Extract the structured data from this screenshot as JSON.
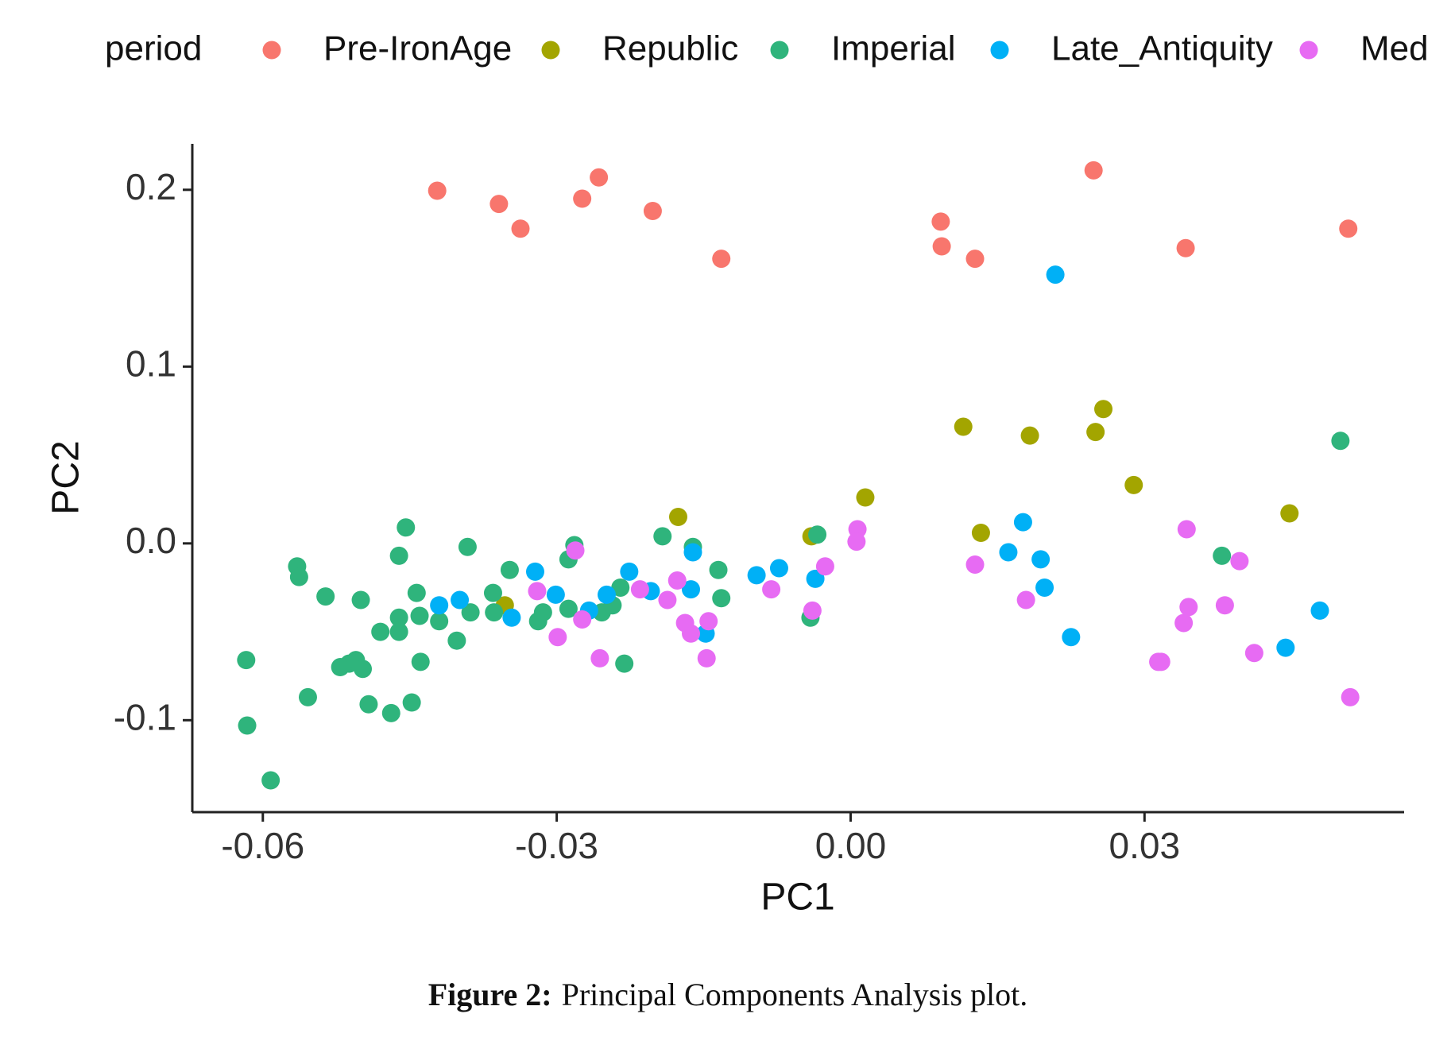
{
  "chart_data": {
    "type": "scatter",
    "legend_title": "period",
    "legend_position": "top",
    "xlabel": "PC1",
    "ylabel": "PC2",
    "xlim": [
      -0.0672,
      0.0565
    ],
    "ylim": [
      -0.152,
      0.226
    ],
    "xticks": [
      -0.06,
      -0.03,
      {
        "value": 0,
        "label": "0.00"
      },
      0.03
    ],
    "yticks": [
      -0.1,
      {
        "value": 0,
        "label": "0.0"
      },
      0.1,
      0.2
    ],
    "grid": false,
    "series": [
      {
        "name": "Pre-IronAge",
        "color": "#F8766D",
        "x": [
          -0.0422,
          -0.0359,
          -0.0337,
          -0.0274,
          -0.0257,
          -0.0202,
          -0.0132,
          0.0092,
          0.0093,
          0.0127,
          0.0248,
          0.0342,
          0.0508
        ],
        "values": [
          0.1995,
          0.192,
          0.178,
          0.195,
          0.207,
          0.188,
          0.161,
          0.182,
          0.168,
          0.161,
          0.211,
          0.167,
          0.178
        ]
      },
      {
        "name": "Republic",
        "color": "#A3A500",
        "x": [
          -0.0176,
          -0.0353,
          -0.004,
          0.0015,
          0.0115,
          0.0133,
          0.0183,
          0.025,
          0.0258,
          0.0289,
          0.0448
        ],
        "values": [
          0.015,
          -0.035,
          0.004,
          0.026,
          0.066,
          0.006,
          0.061,
          0.063,
          0.076,
          0.033,
          0.017
        ]
      },
      {
        "name": "Imperial",
        "color": "#2FB47C",
        "x": [
          -0.0617,
          -0.0616,
          -0.0592,
          -0.0565,
          -0.0563,
          -0.0554,
          -0.0536,
          -0.0521,
          -0.0512,
          -0.0505,
          -0.0498,
          -0.05,
          -0.0492,
          -0.048,
          -0.0469,
          -0.0461,
          -0.0461,
          -0.0461,
          -0.0454,
          -0.0448,
          -0.0443,
          -0.044,
          -0.0439,
          -0.042,
          -0.0402,
          -0.0391,
          -0.0388,
          -0.0365,
          -0.0364,
          -0.0348,
          -0.0319,
          -0.0314,
          -0.0288,
          -0.0288,
          -0.0282,
          -0.0254,
          -0.0243,
          -0.0235,
          -0.0231,
          -0.0192,
          -0.0161,
          -0.0135,
          -0.0132,
          -0.0041,
          -0.0034,
          0.0379,
          0.05
        ],
        "values": [
          -0.066,
          -0.103,
          -0.134,
          -0.013,
          -0.019,
          -0.087,
          -0.03,
          -0.07,
          -0.068,
          -0.066,
          -0.071,
          -0.032,
          -0.091,
          -0.05,
          -0.096,
          -0.007,
          -0.042,
          -0.05,
          0.009,
          -0.09,
          -0.028,
          -0.041,
          -0.067,
          -0.044,
          -0.055,
          -0.002,
          -0.039,
          -0.028,
          -0.039,
          -0.015,
          -0.044,
          -0.039,
          -0.009,
          -0.037,
          -0.001,
          -0.039,
          -0.035,
          -0.025,
          -0.068,
          0.004,
          -0.002,
          -0.015,
          -0.031,
          -0.042,
          0.005,
          -0.007,
          0.058
        ]
      },
      {
        "name": "Late_Antiquity",
        "color": "#00B0F6",
        "x": [
          -0.042,
          -0.0399,
          -0.0346,
          -0.0322,
          -0.0301,
          -0.0267,
          -0.0249,
          -0.0226,
          -0.0204,
          -0.0163,
          -0.0161,
          -0.0148,
          -0.0096,
          -0.0073,
          -0.0036,
          0.0161,
          0.0176,
          0.0194,
          0.0198,
          0.0209,
          0.0225,
          0.0444,
          0.0479
        ],
        "values": [
          -0.035,
          -0.032,
          -0.042,
          -0.016,
          -0.029,
          -0.038,
          -0.029,
          -0.016,
          -0.027,
          -0.026,
          -0.005,
          -0.051,
          -0.018,
          -0.014,
          -0.02,
          -0.005,
          0.012,
          -0.009,
          -0.025,
          0.152,
          -0.053,
          -0.059,
          -0.038
        ]
      },
      {
        "name": "Med",
        "color": "#E76BF3",
        "x": [
          -0.032,
          -0.0299,
          -0.0281,
          -0.0274,
          -0.0256,
          -0.0215,
          -0.0187,
          -0.0177,
          -0.0169,
          -0.0163,
          -0.0145,
          -0.0147,
          -0.0081,
          -0.0039,
          -0.0026,
          0.0007,
          0.0006,
          0.0127,
          0.0179,
          0.0314,
          0.0317,
          0.034,
          0.0343,
          0.0345,
          0.0382,
          0.0397,
          0.0412,
          0.051
        ],
        "values": [
          -0.027,
          -0.053,
          -0.004,
          -0.043,
          -0.065,
          -0.026,
          -0.032,
          -0.021,
          -0.045,
          -0.051,
          -0.044,
          -0.065,
          -0.026,
          -0.038,
          -0.013,
          0.008,
          0.001,
          -0.012,
          -0.032,
          -0.067,
          -0.067,
          -0.045,
          0.008,
          -0.036,
          -0.035,
          -0.01,
          -0.062,
          -0.087
        ]
      }
    ]
  },
  "caption": {
    "label": "Figure 2:",
    "text": "Principal Components Analysis plot."
  }
}
